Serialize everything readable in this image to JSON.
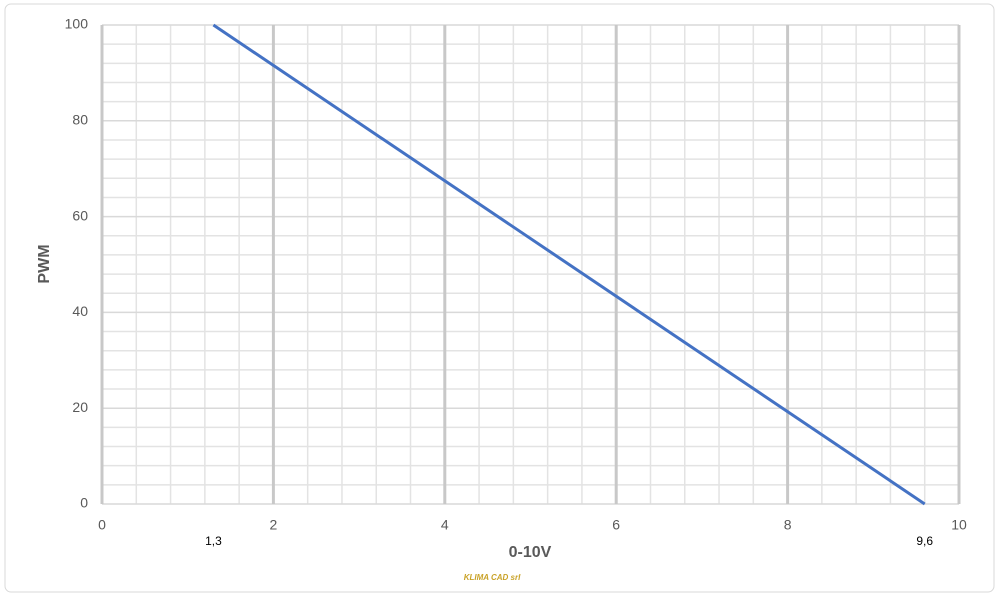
{
  "chart_data": {
    "type": "line",
    "xlabel": "0-10V",
    "ylabel": "PWM",
    "series": [
      {
        "name": "PWM",
        "color": "#4472c4",
        "x": [
          1.3,
          9.6
        ],
        "values": [
          100,
          0
        ]
      }
    ],
    "xlim": [
      0,
      10
    ],
    "xticks": [
      0,
      2,
      4,
      6,
      8,
      10
    ],
    "ylim": [
      0,
      100
    ],
    "yticks": [
      0,
      20,
      40,
      60,
      80,
      100
    ],
    "grid": true,
    "annotations": [
      {
        "text": "1,3",
        "x": 1.3
      },
      {
        "text": "9,6",
        "x": 9.6
      }
    ],
    "watermark": "KLIMA CAD srl"
  }
}
